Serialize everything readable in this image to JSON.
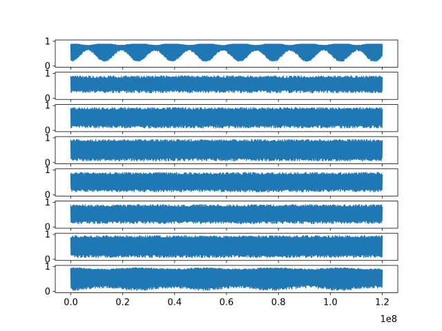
{
  "chart_data": {
    "type": "line",
    "layout": "8 vertically stacked subplots sharing the x axis",
    "color": "#1f77b4",
    "grid": false,
    "legend": "none",
    "title": "",
    "xlabel": "",
    "ylabel": "",
    "x_range": [
      0,
      120000000
    ],
    "x_tick_labels": [
      "0.0",
      "0.2",
      "0.4",
      "0.6",
      "0.8",
      "1.0",
      "1.2"
    ],
    "x_ticks": [
      0,
      20000000,
      40000000,
      60000000,
      80000000,
      100000000,
      120000000
    ],
    "x_offset_label": "1e8",
    "y_tick_labels": [
      "0",
      "1"
    ],
    "y_ticks": [
      0,
      1
    ],
    "ylim": [
      -0.05,
      1.05
    ],
    "subplots": [
      {
        "band": [
          0.26,
          0.88
        ],
        "envelope": "slow periodic beating, period approx 13e6",
        "upper_mean": 0.85,
        "lower_mean": 0.4
      },
      {
        "band": [
          0.2,
          0.95
        ],
        "envelope": "dense noisy oscillation",
        "upper_mean": 0.85,
        "lower_mean": 0.28
      },
      {
        "band": [
          0.1,
          0.95
        ],
        "envelope": "dense noisy oscillation",
        "upper_mean": 0.87,
        "lower_mean": 0.16
      },
      {
        "band": [
          0.1,
          0.95
        ],
        "envelope": "dense noisy oscillation",
        "upper_mean": 0.88,
        "lower_mean": 0.13
      },
      {
        "band": [
          0.15,
          0.95
        ],
        "envelope": "dense noisy oscillation",
        "upper_mean": 0.85,
        "lower_mean": 0.18
      },
      {
        "band": [
          0.1,
          0.95
        ],
        "envelope": "dense noisy oscillation",
        "upper_mean": 0.85,
        "lower_mean": 0.2
      },
      {
        "band": [
          0.05,
          0.95
        ],
        "envelope": "dense noisy oscillation",
        "upper_mean": 0.9,
        "lower_mean": 0.13
      },
      {
        "band": [
          0.05,
          0.95
        ],
        "envelope": "dense oscillation with slow modulation",
        "upper_mean": 0.88,
        "lower_mean": 0.2
      }
    ]
  }
}
